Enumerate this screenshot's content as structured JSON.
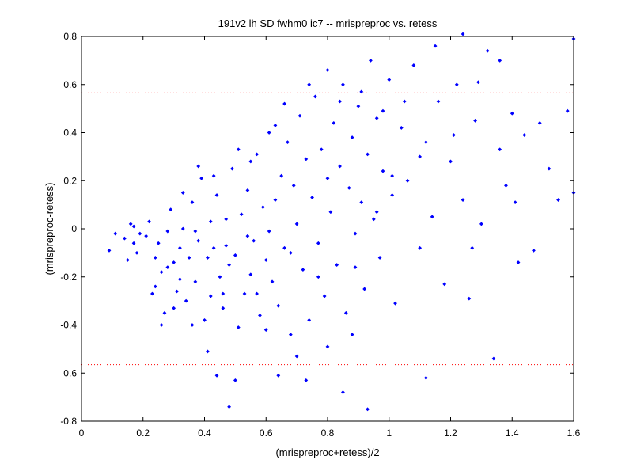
{
  "chart_data": {
    "type": "scatter",
    "title": "191v2 lh SD fwhm0 ic7 -- mrispreproc vs. retess",
    "xlabel": "(mrispreproc+retess)/2",
    "ylabel": "(mrispreproc-retess)",
    "xlim": [
      0,
      1.6
    ],
    "ylim": [
      -0.8,
      0.8
    ],
    "x_ticks": [
      0,
      0.2,
      0.4,
      0.6,
      0.8,
      1,
      1.2,
      1.4,
      1.6
    ],
    "y_ticks": [
      -0.8,
      -0.6,
      -0.4,
      -0.2,
      0,
      0.2,
      0.4,
      0.6,
      0.8
    ],
    "x_tick_labels": [
      "0",
      "0.2",
      "0.4",
      "0.6",
      "0.8",
      "1",
      "1.2",
      "1.4",
      "1.6"
    ],
    "y_tick_labels": [
      "-0.8",
      "-0.6",
      "-0.4",
      "-0.2",
      "0",
      "0.2",
      "0.4",
      "0.6",
      "0.8"
    ],
    "grid": false,
    "marker_color": "#0000ff",
    "reference_line_color": "#ff0000",
    "reference_lines": [
      0.565,
      -0.565
    ],
    "series": [
      {
        "values": [
          [
            0.09,
            -0.09
          ],
          [
            0.11,
            -0.02
          ],
          [
            0.14,
            -0.04
          ],
          [
            0.15,
            -0.13
          ],
          [
            0.16,
            0.02
          ],
          [
            0.17,
            0.01
          ],
          [
            0.17,
            -0.06
          ],
          [
            0.18,
            -0.1
          ],
          [
            0.19,
            -0.02
          ],
          [
            0.21,
            -0.03
          ],
          [
            0.22,
            0.03
          ],
          [
            0.24,
            -0.24
          ],
          [
            0.25,
            -0.06
          ],
          [
            0.26,
            -0.18
          ],
          [
            0.27,
            -0.35
          ],
          [
            0.28,
            -0.01
          ],
          [
            0.29,
            0.08
          ],
          [
            0.3,
            -0.14
          ],
          [
            0.31,
            -0.26
          ],
          [
            0.32,
            -0.21
          ],
          [
            0.33,
            0.0
          ],
          [
            0.34,
            -0.3
          ],
          [
            0.35,
            -0.12
          ],
          [
            0.36,
            0.11
          ],
          [
            0.37,
            -0.22
          ],
          [
            0.38,
            -0.05
          ],
          [
            0.39,
            0.21
          ],
          [
            0.4,
            -0.38
          ],
          [
            0.41,
            -0.12
          ],
          [
            0.42,
            -0.28
          ],
          [
            0.43,
            -0.08
          ],
          [
            0.44,
            0.14
          ],
          [
            0.45,
            -0.2
          ],
          [
            0.46,
            -0.33
          ],
          [
            0.47,
            0.04
          ],
          [
            0.48,
            -0.15
          ],
          [
            0.49,
            0.25
          ],
          [
            0.5,
            -0.11
          ],
          [
            0.51,
            -0.41
          ],
          [
            0.52,
            0.06
          ],
          [
            0.53,
            -0.27
          ],
          [
            0.54,
            0.16
          ],
          [
            0.55,
            -0.19
          ],
          [
            0.56,
            -0.05
          ],
          [
            0.57,
            0.31
          ],
          [
            0.58,
            -0.36
          ],
          [
            0.59,
            0.09
          ],
          [
            0.6,
            -0.13
          ],
          [
            0.61,
            0.4
          ],
          [
            0.62,
            -0.22
          ],
          [
            0.63,
            0.12
          ],
          [
            0.64,
            -0.32
          ],
          [
            0.65,
            0.22
          ],
          [
            0.66,
            -0.08
          ],
          [
            0.67,
            0.36
          ],
          [
            0.68,
            -0.44
          ],
          [
            0.69,
            0.18
          ],
          [
            0.7,
            0.02
          ],
          [
            0.71,
            0.47
          ],
          [
            0.72,
            -0.17
          ],
          [
            0.73,
            0.29
          ],
          [
            0.74,
            -0.38
          ],
          [
            0.75,
            0.13
          ],
          [
            0.76,
            0.55
          ],
          [
            0.77,
            -0.06
          ],
          [
            0.78,
            0.33
          ],
          [
            0.79,
            -0.28
          ],
          [
            0.8,
            0.21
          ],
          [
            0.81,
            0.07
          ],
          [
            0.82,
            0.44
          ],
          [
            0.83,
            -0.15
          ],
          [
            0.84,
            0.26
          ],
          [
            0.85,
            0.6
          ],
          [
            0.86,
            -0.35
          ],
          [
            0.87,
            0.17
          ],
          [
            0.88,
            0.38
          ],
          [
            0.89,
            -0.02
          ],
          [
            0.9,
            0.51
          ],
          [
            0.91,
            0.11
          ],
          [
            0.92,
            -0.25
          ],
          [
            0.93,
            0.31
          ],
          [
            0.94,
            0.7
          ],
          [
            0.95,
            0.04
          ],
          [
            0.96,
            0.46
          ],
          [
            0.97,
            -0.12
          ],
          [
            0.98,
            0.24
          ],
          [
            1.0,
            0.62
          ],
          [
            1.01,
            0.14
          ],
          [
            1.02,
            -0.31
          ],
          [
            1.04,
            0.42
          ],
          [
            1.06,
            0.2
          ],
          [
            1.08,
            0.68
          ],
          [
            1.1,
            -0.08
          ],
          [
            1.12,
            0.36
          ],
          [
            1.14,
            0.05
          ],
          [
            1.16,
            0.53
          ],
          [
            1.18,
            -0.23
          ],
          [
            1.2,
            0.28
          ],
          [
            1.22,
            0.6
          ],
          [
            1.24,
            0.12
          ],
          [
            1.26,
            -0.29
          ],
          [
            1.28,
            0.45
          ],
          [
            1.3,
            0.02
          ],
          [
            1.32,
            0.74
          ],
          [
            1.34,
            -0.54
          ],
          [
            1.36,
            0.33
          ],
          [
            1.38,
            0.18
          ],
          [
            1.4,
            0.48
          ],
          [
            1.42,
            -0.14
          ],
          [
            1.44,
            0.39
          ],
          [
            1.47,
            -0.09
          ],
          [
            1.49,
            0.44
          ],
          [
            1.52,
            0.25
          ],
          [
            1.55,
            0.12
          ],
          [
            1.58,
            0.49
          ],
          [
            1.6,
            0.79
          ],
          [
            1.6,
            0.15
          ],
          [
            1.41,
            0.11
          ],
          [
            1.27,
            -0.08
          ],
          [
            1.12,
            -0.62
          ],
          [
            0.93,
            -0.75
          ],
          [
            0.85,
            -0.68
          ],
          [
            0.73,
            -0.63
          ],
          [
            0.64,
            -0.61
          ],
          [
            0.5,
            -0.63
          ],
          [
            0.48,
            -0.74
          ],
          [
            0.41,
            -0.51
          ],
          [
            0.44,
            -0.61
          ],
          [
            0.6,
            -0.42
          ],
          [
            0.7,
            -0.53
          ],
          [
            0.8,
            -0.49
          ],
          [
            0.88,
            -0.44
          ],
          [
            0.57,
            -0.27
          ],
          [
            0.46,
            -0.27
          ],
          [
            0.36,
            -0.4
          ],
          [
            0.3,
            -0.33
          ],
          [
            0.26,
            -0.4
          ],
          [
            0.23,
            -0.27
          ],
          [
            0.33,
            0.15
          ],
          [
            0.38,
            0.26
          ],
          [
            0.43,
            0.22
          ],
          [
            0.51,
            0.33
          ],
          [
            0.55,
            0.28
          ],
          [
            0.63,
            0.43
          ],
          [
            0.66,
            0.52
          ],
          [
            0.74,
            0.6
          ],
          [
            0.8,
            0.66
          ],
          [
            0.84,
            0.53
          ],
          [
            0.91,
            0.57
          ],
          [
            0.98,
            0.49
          ],
          [
            1.05,
            0.53
          ],
          [
            1.15,
            0.76
          ],
          [
            1.24,
            0.81
          ],
          [
            1.29,
            0.61
          ],
          [
            1.36,
            0.7
          ],
          [
            1.21,
            0.39
          ],
          [
            1.1,
            0.3
          ],
          [
            1.01,
            0.22
          ],
          [
            0.96,
            0.07
          ],
          [
            0.89,
            -0.16
          ],
          [
            0.77,
            -0.2
          ],
          [
            0.68,
            -0.1
          ],
          [
            0.61,
            -0.01
          ],
          [
            0.54,
            -0.03
          ],
          [
            0.47,
            -0.07
          ],
          [
            0.42,
            0.03
          ],
          [
            0.37,
            -0.01
          ],
          [
            0.32,
            -0.08
          ],
          [
            0.28,
            -0.16
          ],
          [
            0.24,
            -0.12
          ]
        ]
      }
    ]
  }
}
